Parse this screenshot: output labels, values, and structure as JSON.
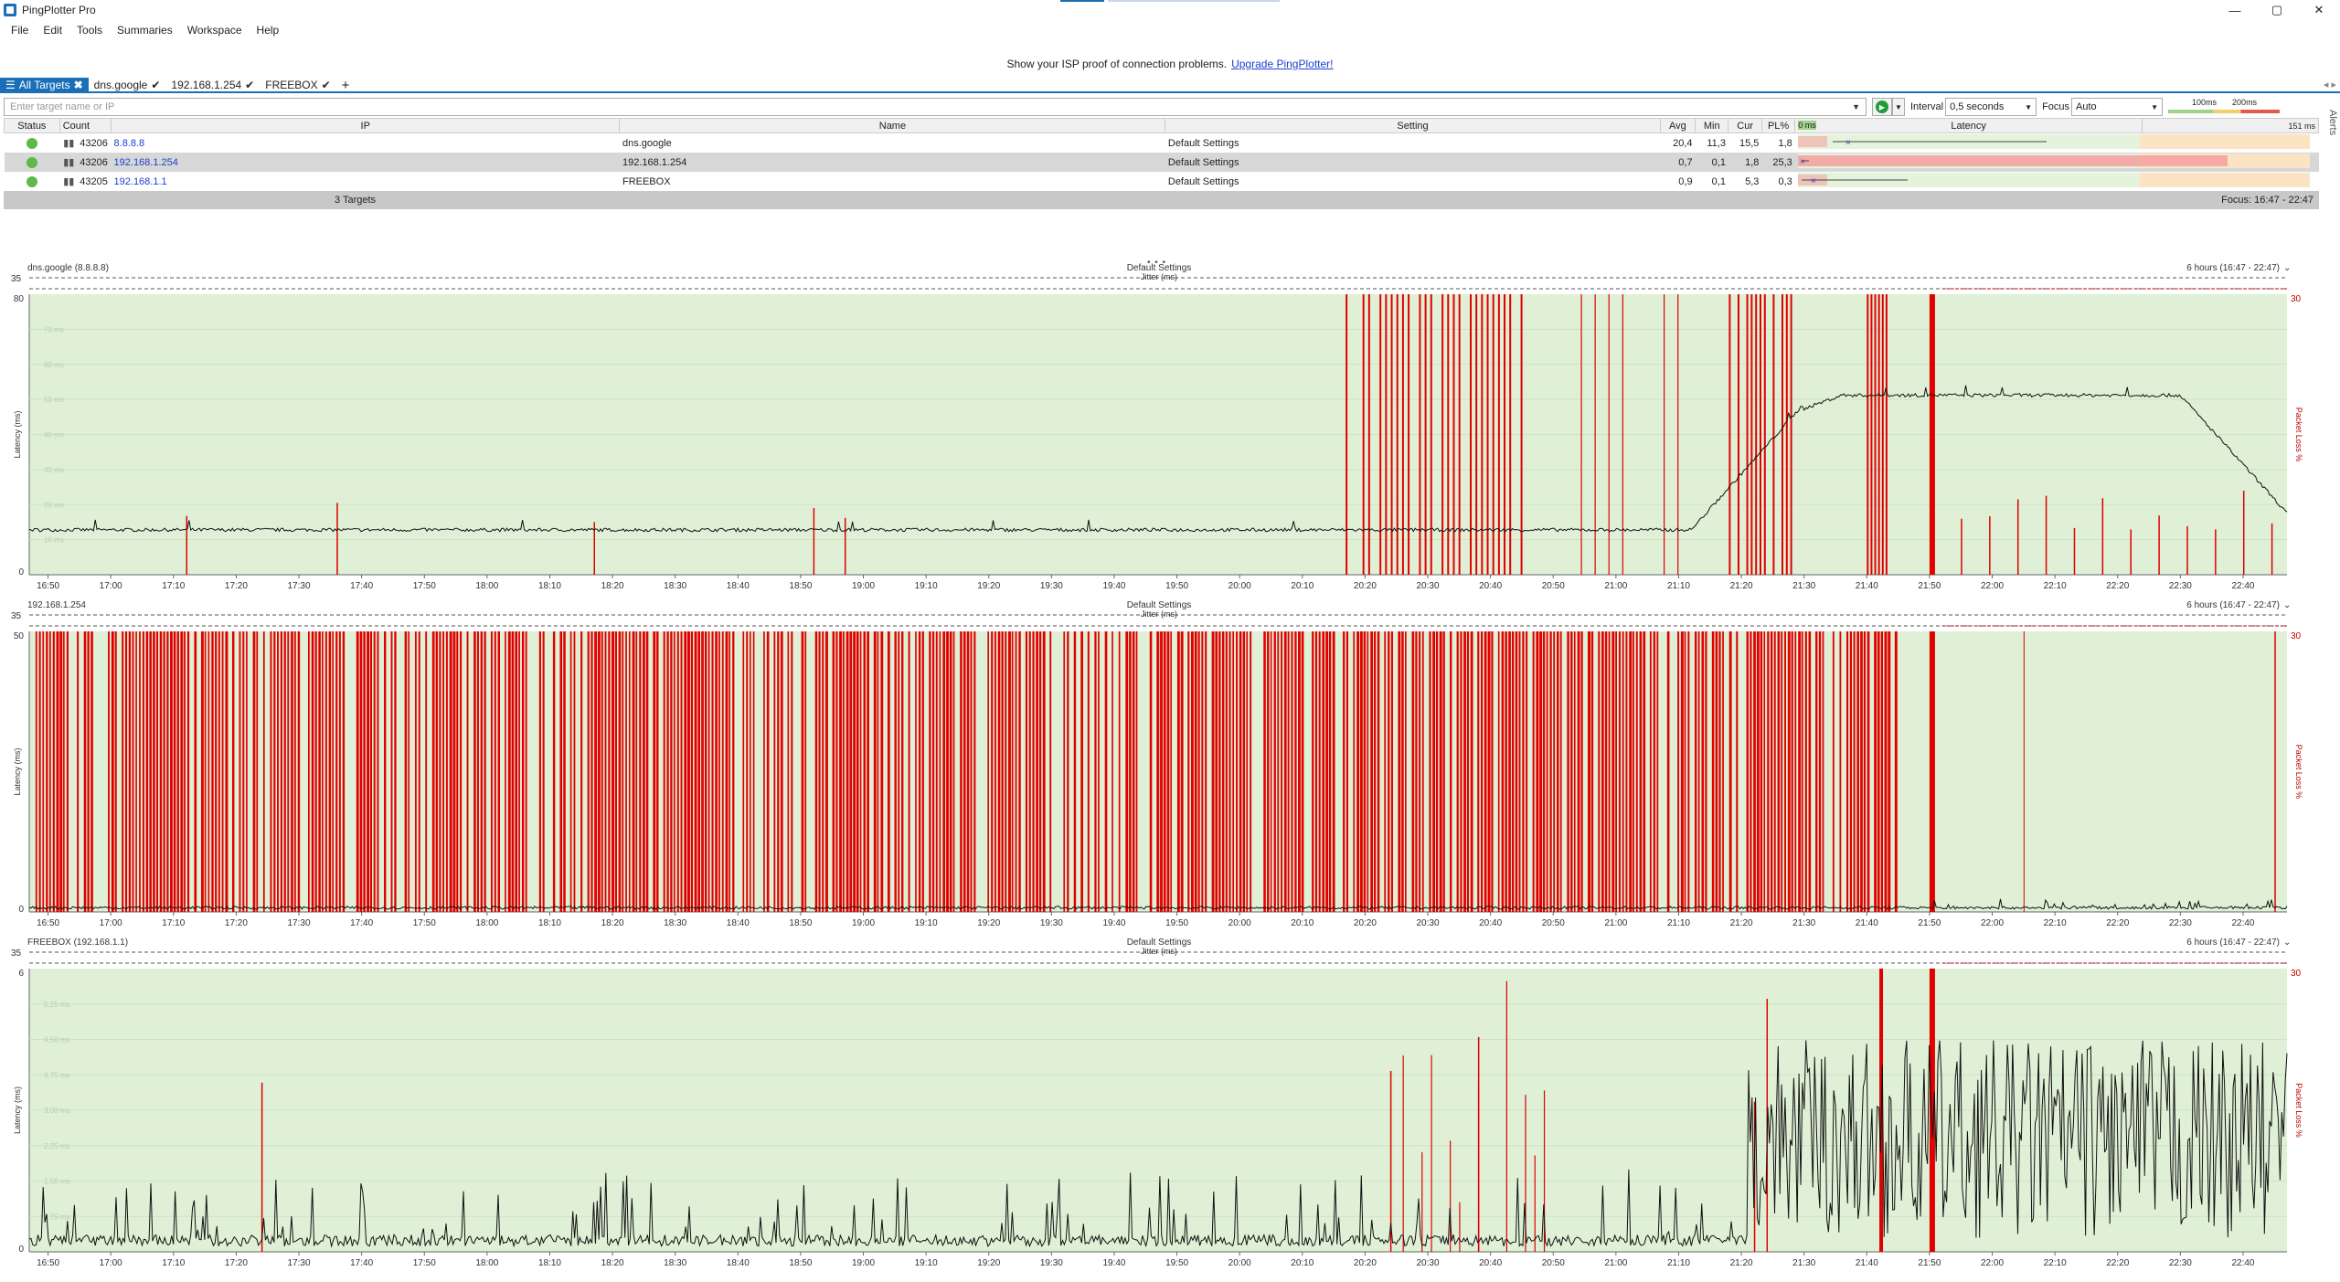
{
  "window": {
    "title": "PingPlotter Pro",
    "minimize": "—",
    "maximize": "▢",
    "close": "✕"
  },
  "menu": [
    "File",
    "Edit",
    "Tools",
    "Summaries",
    "Workspace",
    "Help"
  ],
  "promo": {
    "text": "Show your ISP proof of connection problems.",
    "link": "Upgrade PingPlotter!"
  },
  "tabs": {
    "all": "All Targets",
    "items": [
      "dns.google",
      "192.168.1.254",
      "FREEBOX"
    ],
    "add": "+",
    "nav": "◂ ▸"
  },
  "side": {
    "alerts": "Alerts"
  },
  "toolbar": {
    "target_placeholder": "Enter target name or IP",
    "interval_label": "Interval",
    "interval_value": "0,5 seconds",
    "focus_label": "Focus",
    "focus_value": "Auto",
    "scale_100": "100ms",
    "scale_200": "200ms"
  },
  "grid": {
    "headers": {
      "status": "Status",
      "count": "Count",
      "ip": "IP",
      "name": "Name",
      "setting": "Setting",
      "avg": "Avg",
      "min": "Min",
      "cur": "Cur",
      "pl": "PL%",
      "zero": "0 ms",
      "latency": "Latency",
      "max": "151 ms"
    },
    "rows": [
      {
        "count": "43206",
        "ip": "8.8.8.8",
        "name": "dns.google",
        "setting": "Default Settings",
        "avg": "20,4",
        "min": "11,3",
        "cur": "15,5",
        "pl": "1,8"
      },
      {
        "count": "43206",
        "ip": "192.168.1.254",
        "name": "192.168.1.254",
        "setting": "Default Settings",
        "avg": "0,7",
        "min": "0,1",
        "cur": "1,8",
        "pl": "25,3"
      },
      {
        "count": "43205",
        "ip": "192.168.1.1",
        "name": "FREEBOX",
        "setting": "Default Settings",
        "avg": "0,9",
        "min": "0,1",
        "cur": "5,3",
        "pl": "0,3"
      }
    ],
    "footer": "3 Targets",
    "focus": "Focus: 16:47 - 22:47"
  },
  "charts": [
    {
      "title": "dns.google (8.8.8.8)",
      "setting": "Default Settings",
      "range": "6 hours (16:47 - 22:47)",
      "jitter": "Jitter (ms)",
      "jitter_max": "35",
      "ymax": "80",
      "ymin": "0",
      "pl_max": "30",
      "ylabel": "Latency (ms)",
      "ylabel2": "Packet Loss %",
      "ticks_grid": [
        "70 ms",
        "60 ms",
        "50 ms",
        "40 ms",
        "30 ms",
        "20 ms",
        "10 ms"
      ]
    },
    {
      "title": "192.168.1.254",
      "setting": "Default Settings",
      "range": "6 hours (16:47 - 22:47)",
      "jitter": "Jitter (ms)",
      "jitter_max": "35",
      "ymax": "50",
      "ymin": "0",
      "pl_max": "30",
      "ylabel": "Latency (ms)",
      "ylabel2": "Packet Loss %",
      "ticks_grid": []
    },
    {
      "title": "FREEBOX (192.168.1.1)",
      "setting": "Default Settings",
      "range": "6 hours (16:47 - 22:47)",
      "jitter": "Jitter (ms)",
      "jitter_max": "35",
      "ymax": "6",
      "ymin": "0",
      "pl_max": "30",
      "ylabel": "Latency (ms)",
      "ylabel2": "Packet Loss %",
      "ticks_grid": [
        "5,25 ms",
        "4,50 ms",
        "3,75 ms",
        "3,00 ms",
        "2,25 ms",
        "1,50 ms",
        "0,75 ms"
      ]
    }
  ],
  "time_labels": [
    "16:50",
    "17:00",
    "17:10",
    "17:20",
    "17:30",
    "17:40",
    "17:50",
    "18:00",
    "18:10",
    "18:20",
    "18:30",
    "18:40",
    "18:50",
    "19:00",
    "19:10",
    "19:20",
    "19:30",
    "19:40",
    "19:50",
    "20:00",
    "20:10",
    "20:20",
    "20:30",
    "20:40",
    "20:50",
    "21:00",
    "21:10",
    "21:20",
    "21:30",
    "21:40",
    "21:50",
    "22:00",
    "22:10",
    "22:20",
    "22:30",
    "22:40"
  ],
  "colors": {
    "accent": "#1a6fb8",
    "plot_bg": "#dff0d6",
    "loss": "#e00000",
    "latency_line": "#111111",
    "green_dot": "#5dba47"
  },
  "splitter": "• • •"
}
